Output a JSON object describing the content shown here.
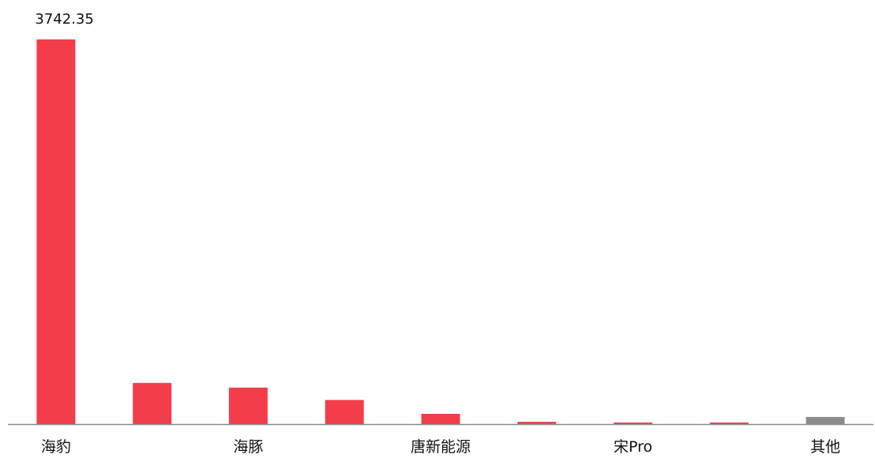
{
  "chart_data": {
    "type": "bar",
    "title": "",
    "xlabel": "",
    "ylabel": "",
    "categories": [
      "海豹",
      "",
      "海豚",
      "",
      "唐新能源",
      "",
      "宋Pro",
      "",
      "其他"
    ],
    "values": [
      3742.35,
      400,
      355,
      235,
      100,
      22,
      15,
      15,
      70
    ],
    "bar_colors": [
      "#f43d4a",
      "#f43d4a",
      "#f43d4a",
      "#f43d4a",
      "#f43d4a",
      "#f43d4a",
      "#f43d4a",
      "#f43d4a",
      "#8c8c8c"
    ],
    "data_labels": [
      "3742.35",
      "",
      "",
      "",
      "",
      "",
      "",
      "",
      ""
    ],
    "ylim": [
      0,
      3742.35
    ],
    "grid": false,
    "axis_color": "#8c8c8c"
  }
}
